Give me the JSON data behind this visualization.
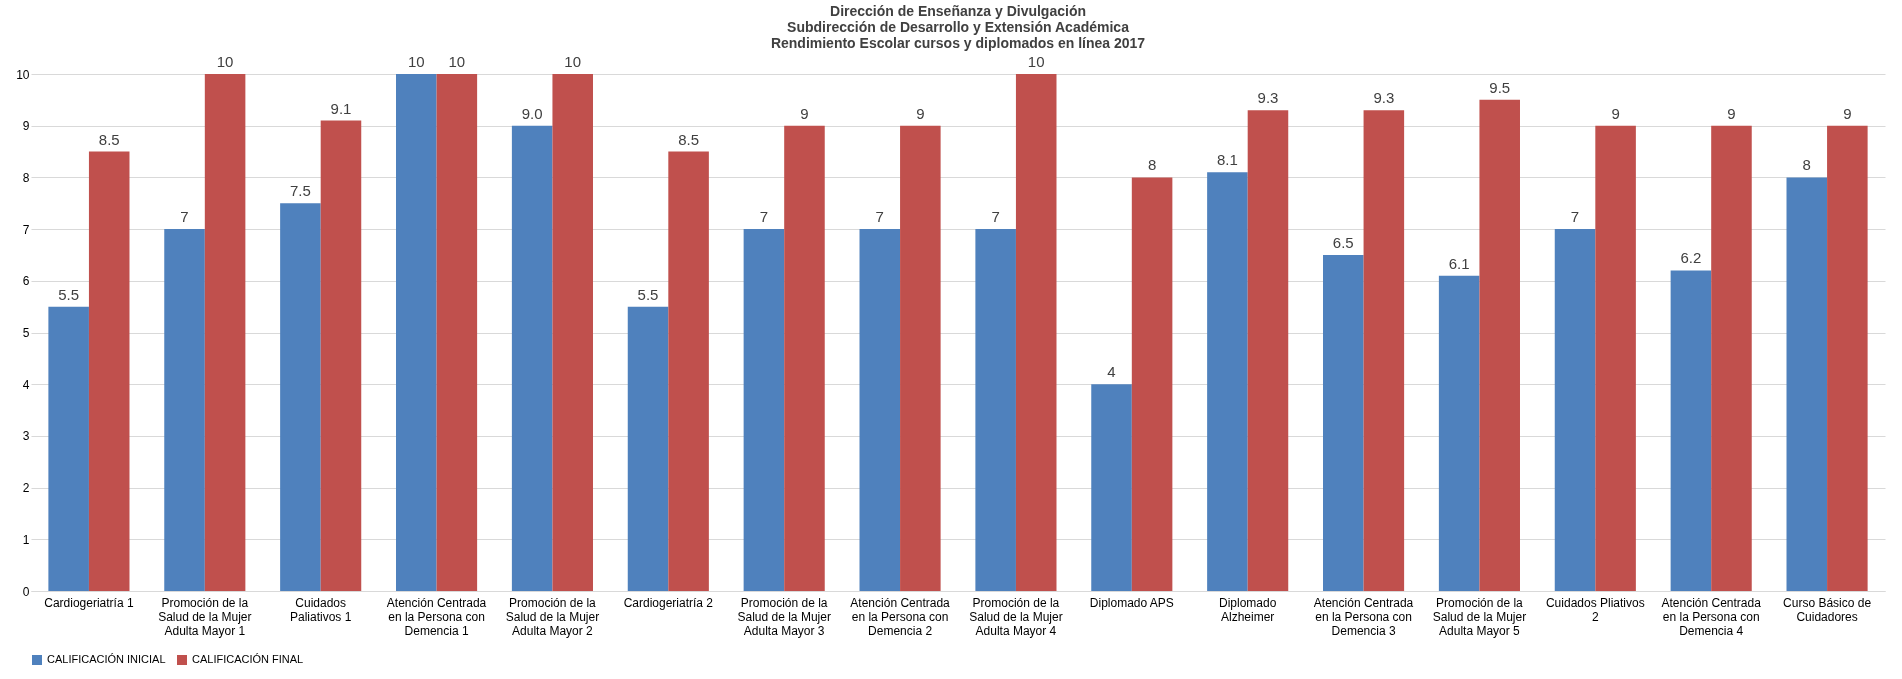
{
  "chart_data": {
    "type": "bar",
    "title": [
      "Dirección de Enseñanza y Divulgación",
      "Subdirección de Desarrollo y Extensión Académica",
      "Rendimiento Escolar cursos y diplomados en línea 2017"
    ],
    "categories": [
      "Cardiogeriatría 1",
      "Promoción de la Salud de la Mujer Adulta Mayor 1",
      "Cuidados Paliativos 1",
      "Atención Centrada en la Persona con Demencia 1",
      "Promoción de la Salud de la Mujer Adulta Mayor 2",
      "Cardiogeriatría 2",
      "Promoción de la Salud de la Mujer Adulta Mayor 3",
      "Atención Centrada en la Persona con Demencia 2",
      "Promoción de la Salud de la Mujer Adulta Mayor 4",
      "Diplomado APS",
      "Diplomado Alzheimer",
      "Atención Centrada en la Persona con Demencia 3",
      "Promoción de la Salud de la Mujer Adulta Mayor 5",
      "Cuidados Pliativos 2",
      "Atención Centrada en la Persona con Demencia 4",
      "Curso Básico de Cuidadores"
    ],
    "series": [
      {
        "name": "CALIFICACIÓN INICIAL",
        "color": "#4f81bd",
        "values": [
          5.5,
          7,
          7.5,
          10,
          9.0,
          5.5,
          7,
          7,
          7,
          4,
          8.1,
          6.5,
          6.1,
          7,
          6.2,
          8
        ],
        "value_labels": [
          "5.5",
          "7",
          "7.5",
          "10",
          "9.0",
          "5.5",
          "7",
          "7",
          "7",
          "4",
          "8.1",
          "6.5",
          "6.1",
          "7",
          "6.2",
          "8"
        ]
      },
      {
        "name": "CALIFICACIÓN FINAL",
        "color": "#c0504d",
        "values": [
          8.5,
          10,
          9.1,
          10,
          10,
          8.5,
          9,
          9,
          10,
          8,
          9.3,
          9.3,
          9.5,
          9,
          9,
          9
        ],
        "value_labels": [
          "8.5",
          "10",
          "9.1",
          "10",
          "10",
          "8.5",
          "9",
          "9",
          "10",
          "8",
          "9.3",
          "9.3",
          "9.5",
          "9",
          "9",
          "9"
        ]
      }
    ],
    "ylim": [
      0,
      10
    ],
    "yticks": [
      0,
      1,
      2,
      3,
      4,
      5,
      6,
      7,
      8,
      9,
      10
    ],
    "grid": "y",
    "legend": "bottom"
  }
}
